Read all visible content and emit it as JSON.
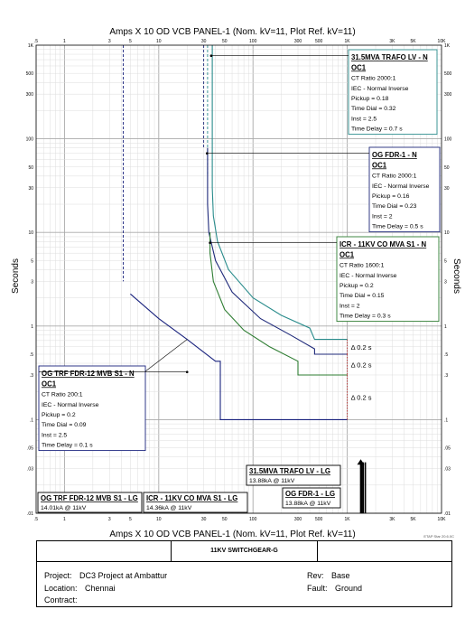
{
  "chart_data": {
    "type": "line",
    "title": "Amps  X  10   OD VCB PANEL-1 (Nom. kV=11, Plot Ref. kV=11)",
    "xlabel": "Amps  X  10   OD VCB PANEL-1 (Nom. kV=11, Plot Ref. kV=11)",
    "ylabel": "Seconds",
    "xscale": "log",
    "yscale": "log",
    "xlim": [
      0.5,
      10000
    ],
    "ylim": [
      0.01,
      1000
    ],
    "grid": true,
    "x_ticks": [
      {
        "v": 0.5,
        "label": ".5"
      },
      {
        "v": 1,
        "label": "1"
      },
      {
        "v": 3,
        "label": "3"
      },
      {
        "v": 5,
        "label": "5"
      },
      {
        "v": 10,
        "label": "10"
      },
      {
        "v": 30,
        "label": "30"
      },
      {
        "v": 50,
        "label": "50"
      },
      {
        "v": 100,
        "label": "100"
      },
      {
        "v": 300,
        "label": "300"
      },
      {
        "v": 500,
        "label": "500"
      },
      {
        "v": 1000,
        "label": "1K"
      },
      {
        "v": 3000,
        "label": "3K"
      },
      {
        "v": 5000,
        "label": "5K"
      },
      {
        "v": 10000,
        "label": "10K"
      }
    ],
    "y_ticks": [
      {
        "v": 0.01,
        "label": ".01"
      },
      {
        "v": 0.03,
        "label": ".03"
      },
      {
        "v": 0.05,
        "label": ".05"
      },
      {
        "v": 0.1,
        "label": ".1"
      },
      {
        "v": 0.3,
        "label": ".3"
      },
      {
        "v": 0.5,
        "label": ".5"
      },
      {
        "v": 1,
        "label": "1"
      },
      {
        "v": 3,
        "label": "3"
      },
      {
        "v": 5,
        "label": "5"
      },
      {
        "v": 10,
        "label": "10"
      },
      {
        "v": 30,
        "label": "30"
      },
      {
        "v": 50,
        "label": "50"
      },
      {
        "v": 100,
        "label": "100"
      },
      {
        "v": 300,
        "label": "300"
      },
      {
        "v": 500,
        "label": "500"
      },
      {
        "v": 1000,
        "label": "1K"
      }
    ],
    "series": [
      {
        "name": "31.5MVA TRAFO LV - N OC1",
        "color": "#2a8c8c",
        "points": [
          [
            37,
            1000
          ],
          [
            37,
            30
          ],
          [
            38,
            15
          ],
          [
            42,
            8
          ],
          [
            55,
            4
          ],
          [
            100,
            2
          ],
          [
            200,
            1.3
          ],
          [
            400,
            0.95
          ],
          [
            450,
            0.72
          ],
          [
            1000,
            0.72
          ]
        ],
        "dashed_points": [
          [
            33,
            1000
          ],
          [
            33,
            40
          ]
        ]
      },
      {
        "name": "OG FDR-1 - N OC1",
        "color": "#1f2a7a",
        "points": [
          [
            33,
            80
          ],
          [
            33,
            20
          ],
          [
            34,
            10
          ],
          [
            40,
            5
          ],
          [
            60,
            2.3
          ],
          [
            120,
            1.2
          ],
          [
            250,
            0.8
          ],
          [
            450,
            0.57
          ],
          [
            450,
            0.5
          ],
          [
            1000,
            0.5
          ]
        ],
        "dashed_points": [
          [
            30,
            1000
          ],
          [
            30,
            80
          ]
        ]
      },
      {
        "name": "ICR - 11KV CO MVA S1 - N OC1",
        "color": "#2e7d32",
        "points": [
          [
            35,
            10
          ],
          [
            35,
            6
          ],
          [
            38,
            3
          ],
          [
            50,
            1.5
          ],
          [
            80,
            0.9
          ],
          [
            150,
            0.6
          ],
          [
            300,
            0.42
          ],
          [
            300,
            0.3
          ],
          [
            1000,
            0.3
          ]
        ],
        "dashed_points": []
      },
      {
        "name": "OG TRF FDR-12 MVB S1 - N OC1",
        "color": "#1a237e",
        "points": [
          [
            5,
            2.2
          ],
          [
            10,
            1.2
          ],
          [
            20,
            0.72
          ],
          [
            40,
            0.42
          ],
          [
            45,
            0.42
          ],
          [
            45,
            0.1
          ],
          [
            1000,
            0.1
          ]
        ],
        "dashed_points": [
          [
            4.2,
            1000
          ],
          [
            4.2,
            3
          ]
        ]
      }
    ],
    "lg_markers": [
      {
        "name": "31.5MVA TRAFO LV - LG",
        "fault": "13.88kA @ 11kV",
        "x": 1388,
        "color": "#000000"
      },
      {
        "name": "OG FDR-1 - LG",
        "fault": "13.88kA @ 11kV",
        "x": 1388,
        "color": "#000000"
      },
      {
        "name": "OG TRF FDR-12 MVB S1 - LG",
        "fault": "14.01kA @ 11kV",
        "x": 1401,
        "color": "#000000"
      },
      {
        "name": "ICR - 11KV CO MVA S1 - LG",
        "fault": "14.36kA @ 11kV",
        "x": 1436,
        "color": "#000000"
      }
    ],
    "delta_labels": [
      "Δ 0.2 s",
      "Δ 0.2 s",
      "Δ 0.2 s"
    ]
  },
  "labels": {
    "trafo_n": {
      "title_l1": "31.5MVA TRAFO LV - N",
      "title_l2": "OC1",
      "lines": [
        "CT Ratio 2000:1",
        "IEC - Normal Inverse",
        "Pickup = 0.18",
        "Time Dial = 0.32",
        "Inst = 2.5",
        "Time Delay = 0.7 s"
      ]
    },
    "ogfdr_n": {
      "title_l1": "OG FDR-1 - N",
      "title_l2": "OC1",
      "lines": [
        "CT Ratio 2000:1",
        "IEC - Normal Inverse",
        "Pickup = 0.16",
        "Time Dial = 0.23",
        "Inst = 2",
        "Time Delay = 0.5 s"
      ]
    },
    "icr_n": {
      "title_l1": "ICR - 11KV CO MVA S1 - N",
      "title_l2": "OC1",
      "lines": [
        "CT Ratio 1600:1",
        "IEC - Normal Inverse",
        "Pickup = 0.2",
        "Time Dial = 0.15",
        "Inst = 2",
        "Time Delay = 0.3 s"
      ]
    },
    "ogtrf_n": {
      "title_l1": "OG TRF FDR-12 MVB S1 - N",
      "title_l2": "OC1",
      "lines": [
        "CT Ratio 200:1",
        "IEC - Normal Inverse",
        "Pickup = 0.2",
        "Time Dial = 0.09",
        "Inst = 2.5",
        "Time Delay = 0.1 s"
      ]
    }
  },
  "y_axis_label": "Seconds",
  "stamp": "ETAP Star 20.6.0C",
  "title_block": {
    "name": "11KV SWITCHGEAR-G",
    "project_label": "Project:",
    "project": "DC3 Project at Ambattur",
    "location_label": "Location:",
    "location": "Chennai",
    "contract_label": "Contract:",
    "rev_label": "Rev:",
    "rev": "Base",
    "fault_label": "Fault:",
    "fault": "Ground"
  }
}
